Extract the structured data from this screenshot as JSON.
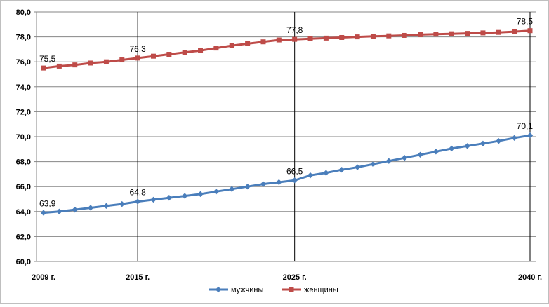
{
  "chart_data": {
    "type": "line",
    "ylim": [
      60,
      80
    ],
    "y_ticks": [
      "60,0",
      "62,0",
      "64,0",
      "66,0",
      "68,0",
      "70,0",
      "72,0",
      "74,0",
      "76,0",
      "78,0",
      "80,0"
    ],
    "y_tick_values": [
      60,
      62,
      64,
      66,
      68,
      70,
      72,
      74,
      76,
      78,
      80
    ],
    "x": [
      2009,
      2010,
      2011,
      2012,
      2013,
      2014,
      2015,
      2016,
      2017,
      2018,
      2019,
      2020,
      2021,
      2022,
      2023,
      2024,
      2025,
      2026,
      2027,
      2028,
      2029,
      2030,
      2031,
      2032,
      2033,
      2034,
      2035,
      2036,
      2037,
      2038,
      2039,
      2040
    ],
    "x_tick_labels": [
      {
        "x": 2009,
        "label": "2009 г."
      },
      {
        "x": 2015,
        "label": "2015 г."
      },
      {
        "x": 2025,
        "label": "2025 г."
      },
      {
        "x": 2040,
        "label": "2040 г."
      }
    ],
    "vertical_lines_at": [
      2015,
      2025,
      2040
    ],
    "grid": "horizontal",
    "legend_position": "bottom",
    "series": [
      {
        "name": "мужчины",
        "color": "#4a7ebb",
        "marker": "diamond",
        "values": [
          63.9,
          64.0,
          64.15,
          64.3,
          64.45,
          64.6,
          64.8,
          64.95,
          65.1,
          65.25,
          65.4,
          65.6,
          65.8,
          66.0,
          66.2,
          66.35,
          66.5,
          66.9,
          67.1,
          67.35,
          67.55,
          67.8,
          68.05,
          68.3,
          68.55,
          68.8,
          69.05,
          69.25,
          69.45,
          69.65,
          69.9,
          70.1
        ],
        "data_labels": [
          {
            "x": 2009,
            "text": "63,9"
          },
          {
            "x": 2015,
            "text": "64,8"
          },
          {
            "x": 2025,
            "text": "66,5"
          },
          {
            "x": 2040,
            "text": "70,1"
          }
        ]
      },
      {
        "name": "женщины",
        "color": "#be4b48",
        "marker": "square",
        "values": [
          75.5,
          75.65,
          75.75,
          75.9,
          76.0,
          76.15,
          76.3,
          76.45,
          76.6,
          76.75,
          76.9,
          77.1,
          77.3,
          77.45,
          77.6,
          77.75,
          77.8,
          77.85,
          77.9,
          77.95,
          78.0,
          78.05,
          78.08,
          78.12,
          78.18,
          78.22,
          78.25,
          78.28,
          78.32,
          78.36,
          78.42,
          78.5
        ],
        "data_labels": [
          {
            "x": 2009,
            "text": "75,5"
          },
          {
            "x": 2015,
            "text": "76,3"
          },
          {
            "x": 2025,
            "text": "77,8"
          },
          {
            "x": 2040,
            "text": "78,5"
          }
        ]
      }
    ]
  }
}
